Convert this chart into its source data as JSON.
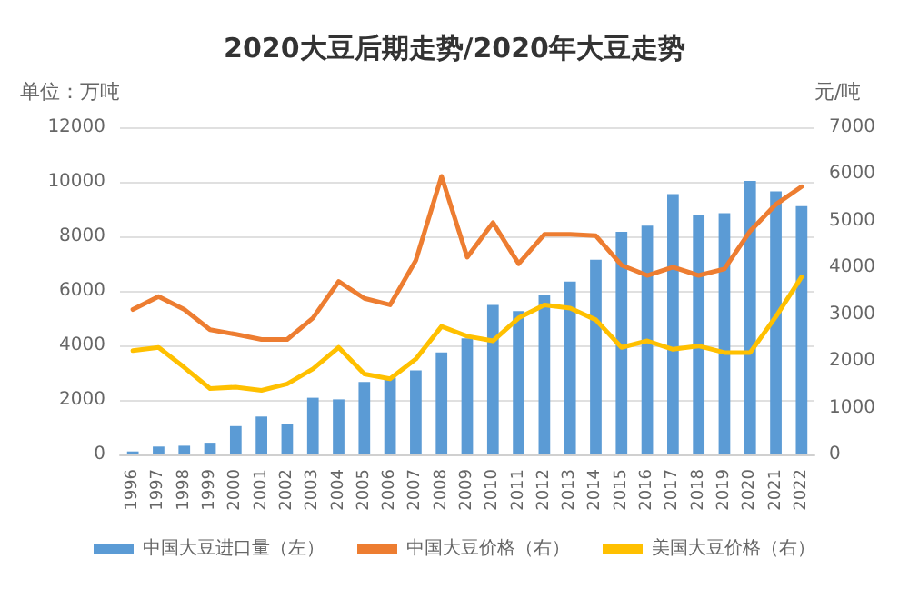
{
  "chart_data": {
    "type": "bar",
    "title": "2020大豆后期走势/2020年大豆走势",
    "ylabel": "单位：万吨",
    "y2label": "元/吨",
    "categories": [
      "1996",
      "1997",
      "1998",
      "1999",
      "2000",
      "2001",
      "2002",
      "2003",
      "2004",
      "2005",
      "2006",
      "2007",
      "2008",
      "2009",
      "2010",
      "2011",
      "2012",
      "2013",
      "2014",
      "2015",
      "2016",
      "2017",
      "2018",
      "2019",
      "2020",
      "2021",
      "2022"
    ],
    "series": [
      {
        "name": "中国大豆进口量（左）",
        "color": "#5b9bd5",
        "values": [
          110,
          290,
          320,
          430,
          1040,
          1390,
          1130,
          2080,
          2020,
          2660,
          2820,
          3080,
          3740,
          4260,
          5480,
          5260,
          5840,
          6340,
          7140,
          8170,
          8390,
          9550,
          8800,
          8850,
          10030,
          9650,
          9110
        ]
      },
      {
        "name": "中国大豆价格（右）",
        "type": "line",
        "axis": "y2",
        "color": "#ed7d31",
        "values": [
          3100,
          3380,
          3100,
          2670,
          2570,
          2460,
          2460,
          2920,
          3700,
          3340,
          3200,
          4150,
          5950,
          4220,
          4960,
          4080,
          4710,
          4710,
          4680,
          4050,
          3830,
          4010,
          3830,
          3970,
          4780,
          5350,
          5730
        ]
      },
      {
        "name": "美国大豆价格（右）",
        "type": "line",
        "axis": "y2",
        "color": "#ffc000",
        "values": [
          2220,
          2290,
          1860,
          1410,
          1440,
          1370,
          1510,
          1830,
          2290,
          1720,
          1620,
          2040,
          2740,
          2530,
          2430,
          2920,
          3200,
          3130,
          2880,
          2290,
          2430,
          2250,
          2320,
          2180,
          2180,
          2950,
          3800
        ]
      }
    ],
    "ylim": [
      0,
      12000
    ],
    "yticks": [
      0,
      2000,
      4000,
      6000,
      8000,
      10000,
      12000
    ],
    "y2lim": [
      0,
      7000
    ],
    "y2ticks": [
      0,
      1000,
      2000,
      3000,
      4000,
      5000,
      6000,
      7000
    ],
    "grid": "y",
    "legend": "bottom",
    "marker": "none",
    "line_style": "solid"
  }
}
